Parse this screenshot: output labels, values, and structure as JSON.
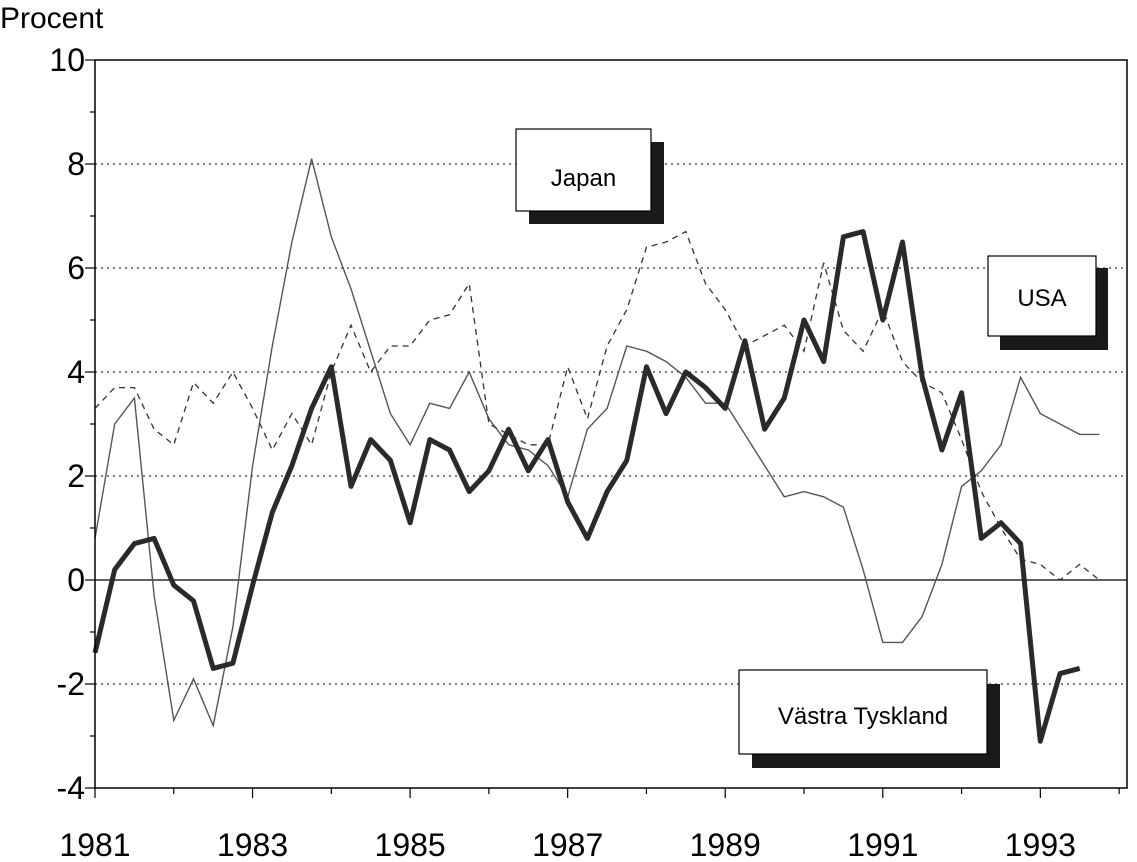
{
  "chart_data": {
    "type": "line",
    "title": "",
    "ylabel": "Procent",
    "xlabel": "",
    "ylim": [
      -4,
      10
    ],
    "xlim": [
      1981,
      1994.1
    ],
    "y_ticks": [
      -4,
      -2,
      0,
      2,
      4,
      6,
      8,
      10
    ],
    "y_tick_labels": [
      "-4",
      "-2",
      "0",
      "2",
      "4",
      "6",
      "8",
      "10"
    ],
    "x_ticks": [
      1981,
      1983,
      1985,
      1987,
      1989,
      1991,
      1993
    ],
    "x_tick_labels": [
      "1981",
      "1983",
      "1985",
      "1987",
      "1989",
      "1991",
      "1993"
    ],
    "grid": "dotted horizontal at even values",
    "legend": "inline labels boxes near lines",
    "series": [
      {
        "name": "Japan",
        "style": "thin solid",
        "x": [
          1981.0,
          1981.25,
          1981.5,
          1981.75,
          1982.0,
          1982.25,
          1982.5,
          1982.75,
          1983.0,
          1983.25,
          1983.5,
          1983.75,
          1984.0,
          1984.25,
          1984.5,
          1984.75,
          1985.0,
          1985.25,
          1985.5,
          1985.75,
          1986.0,
          1986.25,
          1986.5,
          1986.75,
          1987.0,
          1987.25,
          1987.5,
          1987.75,
          1988.0,
          1988.25,
          1988.5,
          1988.75,
          1989.0,
          1989.25,
          1989.5,
          1989.75,
          1990.0,
          1990.25,
          1990.5,
          1990.75,
          1991.0,
          1991.25,
          1991.5,
          1991.75,
          1992.0,
          1992.25,
          1992.5,
          1992.75,
          1993.0,
          1993.25,
          1993.5,
          1993.75
        ],
        "values": [
          0.8,
          3.0,
          3.5,
          -0.3,
          -2.7,
          -1.9,
          -2.8,
          -0.9,
          2.2,
          4.5,
          6.5,
          8.1,
          6.6,
          5.6,
          4.4,
          3.2,
          2.6,
          3.4,
          3.3,
          4.0,
          3.1,
          2.6,
          2.5,
          2.2,
          1.6,
          2.9,
          3.3,
          4.5,
          4.4,
          4.2,
          3.9,
          3.4,
          3.4,
          2.8,
          2.2,
          1.6,
          1.7,
          1.6,
          1.4,
          0.2,
          -1.2,
          -1.2,
          -0.7,
          0.3,
          1.8,
          2.1,
          2.6,
          3.9,
          3.2,
          3.0,
          2.8,
          2.8
        ]
      },
      {
        "name": "USA",
        "style": "dashed",
        "x": [
          1981.0,
          1981.25,
          1981.5,
          1981.75,
          1982.0,
          1982.25,
          1982.5,
          1982.75,
          1983.0,
          1983.25,
          1983.5,
          1983.75,
          1984.0,
          1984.25,
          1984.5,
          1984.75,
          1985.0,
          1985.25,
          1985.5,
          1985.75,
          1986.0,
          1986.25,
          1986.5,
          1986.75,
          1987.0,
          1987.25,
          1987.5,
          1987.75,
          1988.0,
          1988.25,
          1988.5,
          1988.75,
          1989.0,
          1989.25,
          1989.5,
          1989.75,
          1990.0,
          1990.25,
          1990.5,
          1990.75,
          1991.0,
          1991.25,
          1991.5,
          1991.75,
          1992.0,
          1992.25,
          1992.5,
          1992.75,
          1993.0,
          1993.25,
          1993.5,
          1993.75
        ],
        "values": [
          3.3,
          3.7,
          3.7,
          2.9,
          2.6,
          3.8,
          3.4,
          4.0,
          3.3,
          2.5,
          3.2,
          2.6,
          4.0,
          4.9,
          4.0,
          4.5,
          4.5,
          5.0,
          5.1,
          5.7,
          3.0,
          2.8,
          2.6,
          2.6,
          4.1,
          3.1,
          4.5,
          5.2,
          6.4,
          6.5,
          6.7,
          5.7,
          5.2,
          4.5,
          4.7,
          4.9,
          4.4,
          6.1,
          4.8,
          4.4,
          5.2,
          4.2,
          3.8,
          3.6,
          2.7,
          1.7,
          1.0,
          0.4,
          0.3,
          0.0,
          0.3,
          0.0
        ]
      },
      {
        "name": "Västra Tyskland",
        "style": "thick solid",
        "x": [
          1981.0,
          1981.25,
          1981.5,
          1981.75,
          1982.0,
          1982.25,
          1982.5,
          1982.75,
          1983.0,
          1983.25,
          1983.5,
          1983.75,
          1984.0,
          1984.25,
          1984.5,
          1984.75,
          1985.0,
          1985.25,
          1985.5,
          1985.75,
          1986.0,
          1986.25,
          1986.5,
          1986.75,
          1987.0,
          1987.25,
          1987.5,
          1987.75,
          1988.0,
          1988.25,
          1988.5,
          1988.75,
          1989.0,
          1989.25,
          1989.5,
          1989.75,
          1990.0,
          1990.25,
          1990.5,
          1990.75,
          1991.0,
          1991.25,
          1991.5,
          1991.75,
          1992.0,
          1992.25,
          1992.5,
          1992.75,
          1993.0,
          1993.25,
          1993.5
        ],
        "values": [
          -1.4,
          0.2,
          0.7,
          0.8,
          -0.1,
          -0.4,
          -1.7,
          -1.6,
          -0.1,
          1.3,
          2.2,
          3.3,
          4.1,
          1.8,
          2.7,
          2.3,
          1.1,
          2.7,
          2.5,
          1.7,
          2.1,
          2.9,
          2.1,
          2.7,
          1.5,
          0.8,
          1.7,
          2.3,
          4.1,
          3.2,
          4.0,
          3.7,
          3.3,
          4.6,
          2.9,
          3.5,
          5.0,
          4.2,
          6.6,
          6.7,
          5.0,
          6.5,
          3.9,
          2.5,
          3.6,
          0.8,
          1.1,
          0.7,
          -3.1,
          -1.8,
          -1.7
        ]
      }
    ],
    "labels": {
      "japan": "Japan",
      "usa": "USA",
      "vastra_tyskland": "Västra Tyskland"
    }
  }
}
